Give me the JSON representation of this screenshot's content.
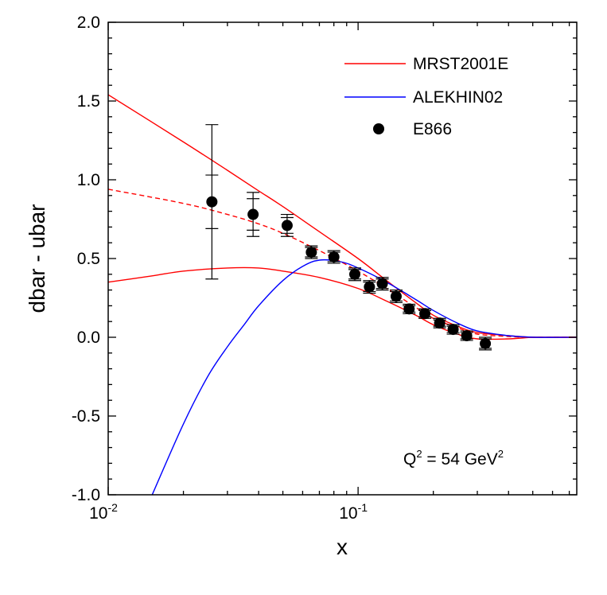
{
  "chart_data": {
    "type": "line",
    "xscale": "log",
    "xlabel": "x",
    "ylabel": "dbar - ubar",
    "xlim": [
      0.01,
      0.75
    ],
    "ylim": [
      -1.0,
      2.0
    ],
    "yticks": [
      "-1.0",
      "-0.5",
      "0.0",
      "0.5",
      "1.0",
      "1.5",
      "2.0"
    ],
    "xticks": [
      {
        "value": 0.01,
        "base": "10",
        "exp": "-2"
      },
      {
        "value": 0.1,
        "base": "10",
        "exp": "-1"
      }
    ],
    "annotation": {
      "q": "Q",
      "q_sup": "2",
      "eq": " = 54 GeV",
      "unit_sup": "2",
      "position": "bottom-right"
    },
    "legend": {
      "position": "top-right",
      "entries": [
        {
          "label": "MRST2001E",
          "kind": "line",
          "color": "#ff0000"
        },
        {
          "label": "ALEKHIN02",
          "kind": "line",
          "color": "#0000ff"
        },
        {
          "label": "E866",
          "kind": "marker",
          "color": "#000000"
        }
      ]
    },
    "series": [
      {
        "name": "MRST2001E upper",
        "color": "#ff0000",
        "dash": false,
        "x": [
          0.01,
          0.02,
          0.03,
          0.04,
          0.05,
          0.07,
          0.1,
          0.13,
          0.17,
          0.2,
          0.25,
          0.3,
          0.4,
          0.5,
          0.6,
          0.75
        ],
        "y": [
          1.54,
          1.24,
          1.06,
          0.93,
          0.83,
          0.67,
          0.5,
          0.36,
          0.22,
          0.14,
          0.07,
          0.03,
          0.01,
          0.0,
          0.0,
          0.0
        ]
      },
      {
        "name": "MRST2001E central",
        "color": "#ff0000",
        "dash": true,
        "x": [
          0.01,
          0.02,
          0.03,
          0.04,
          0.05,
          0.07,
          0.1,
          0.13,
          0.17,
          0.2,
          0.25,
          0.3,
          0.4,
          0.5,
          0.6,
          0.75
        ],
        "y": [
          0.94,
          0.85,
          0.78,
          0.72,
          0.66,
          0.55,
          0.42,
          0.31,
          0.19,
          0.12,
          0.06,
          0.02,
          0.005,
          0.0,
          0.0,
          0.0
        ]
      },
      {
        "name": "MRST2001E lower",
        "color": "#ff0000",
        "dash": false,
        "x": [
          0.01,
          0.015,
          0.02,
          0.03,
          0.04,
          0.05,
          0.07,
          0.1,
          0.13,
          0.17,
          0.2,
          0.25,
          0.3,
          0.4,
          0.5,
          0.6,
          0.75
        ],
        "y": [
          0.35,
          0.39,
          0.42,
          0.44,
          0.44,
          0.42,
          0.38,
          0.31,
          0.23,
          0.14,
          0.08,
          0.02,
          -0.01,
          -0.01,
          0.0,
          0.0,
          0.0
        ]
      },
      {
        "name": "ALEKHIN02",
        "color": "#0000ff",
        "dash": false,
        "x": [
          0.015,
          0.02,
          0.025,
          0.03,
          0.035,
          0.04,
          0.05,
          0.06,
          0.07,
          0.085,
          0.1,
          0.13,
          0.17,
          0.2,
          0.25,
          0.3,
          0.4,
          0.5,
          0.75
        ],
        "y": [
          -1.0,
          -0.55,
          -0.25,
          -0.06,
          0.08,
          0.2,
          0.36,
          0.45,
          0.49,
          0.48,
          0.44,
          0.35,
          0.24,
          0.17,
          0.09,
          0.04,
          0.01,
          0.0,
          0.0
        ]
      }
    ],
    "points": {
      "name": "E866",
      "x": [
        0.026,
        0.038,
        0.052,
        0.065,
        0.08,
        0.097,
        0.111,
        0.125,
        0.142,
        0.16,
        0.185,
        0.212,
        0.24,
        0.272,
        0.323
      ],
      "y": [
        0.86,
        0.78,
        0.71,
        0.54,
        0.51,
        0.4,
        0.32,
        0.34,
        0.26,
        0.18,
        0.15,
        0.09,
        0.05,
        0.01,
        -0.04
      ],
      "err_stat": [
        0.17,
        0.1,
        0.05,
        0.03,
        0.03,
        0.03,
        0.03,
        0.03,
        0.03,
        0.02,
        0.02,
        0.02,
        0.02,
        0.02,
        0.03
      ],
      "err_total": [
        0.49,
        0.14,
        0.07,
        0.04,
        0.04,
        0.04,
        0.04,
        0.04,
        0.04,
        0.03,
        0.03,
        0.03,
        0.03,
        0.03,
        0.04
      ]
    }
  }
}
